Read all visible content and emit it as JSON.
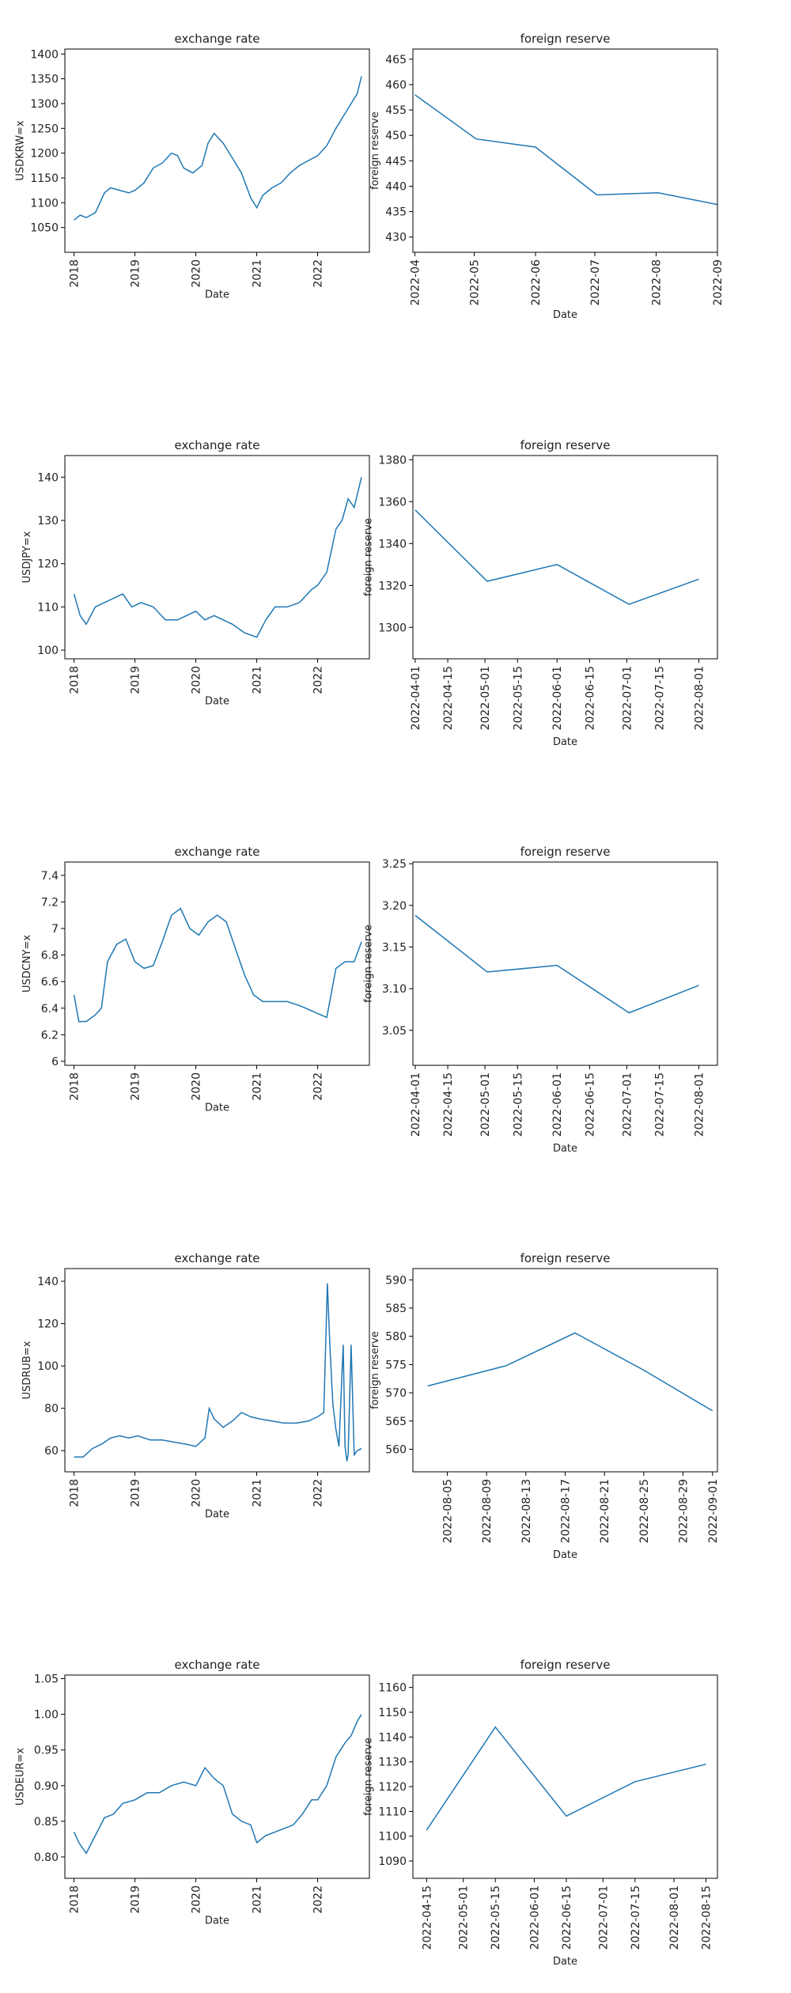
{
  "chart_data": [
    {
      "type": "line",
      "title": "exchange rate",
      "xlabel": "Date",
      "ylabel": "USDKRW=x",
      "xlim": [
        2017.85,
        2022.85
      ],
      "ylim": [
        1000,
        1410
      ],
      "xticks": [
        2018,
        2019,
        2020,
        2021,
        2022
      ],
      "xtick_labels": [
        "2018",
        "2019",
        "2020",
        "2021",
        "2022"
      ],
      "yticks": [
        1050,
        1100,
        1150,
        1200,
        1250,
        1300,
        1350,
        1400
      ],
      "x": [
        2018.0,
        2018.1,
        2018.2,
        2018.35,
        2018.5,
        2018.6,
        2018.75,
        2018.9,
        2019.0,
        2019.15,
        2019.3,
        2019.45,
        2019.6,
        2019.7,
        2019.8,
        2019.95,
        2020.1,
        2020.2,
        2020.3,
        2020.45,
        2020.6,
        2020.75,
        2020.9,
        2021.0,
        2021.1,
        2021.25,
        2021.4,
        2021.55,
        2021.7,
        2021.85,
        2022.0,
        2022.15,
        2022.3,
        2022.45,
        2022.55,
        2022.65,
        2022.72
      ],
      "values": [
        1065,
        1075,
        1070,
        1080,
        1120,
        1130,
        1125,
        1120,
        1125,
        1140,
        1170,
        1180,
        1200,
        1195,
        1170,
        1160,
        1175,
        1220,
        1240,
        1220,
        1190,
        1160,
        1110,
        1090,
        1115,
        1130,
        1140,
        1160,
        1175,
        1185,
        1195,
        1215,
        1250,
        1280,
        1300,
        1320,
        1355
      ]
    },
    {
      "type": "line",
      "title": "foreign reserve",
      "xlabel": "Date",
      "ylabel": "foreign reserve",
      "xlim": [
        -1,
        153
      ],
      "ylim": [
        427,
        467
      ],
      "xticks": [
        0,
        30,
        61,
        91,
        122,
        153
      ],
      "xtick_labels": [
        "2022-04",
        "2022-05",
        "2022-06",
        "2022-07",
        "2022-08",
        "2022-09"
      ],
      "yticks": [
        430,
        435,
        440,
        445,
        450,
        455,
        460,
        465
      ],
      "x": [
        0,
        31,
        61,
        92,
        123,
        153
      ],
      "values": [
        458,
        449.3,
        447.7,
        438.3,
        438.7,
        436.4
      ]
    },
    {
      "type": "line",
      "title": "exchange rate",
      "xlabel": "Date",
      "ylabel": "USDJPY=x",
      "xlim": [
        2017.85,
        2022.85
      ],
      "ylim": [
        98,
        145
      ],
      "xticks": [
        2018,
        2019,
        2020,
        2021,
        2022
      ],
      "xtick_labels": [
        "2018",
        "2019",
        "2020",
        "2021",
        "2022"
      ],
      "yticks": [
        100,
        110,
        120,
        130,
        140
      ],
      "x": [
        2018.0,
        2018.1,
        2018.2,
        2018.35,
        2018.5,
        2018.65,
        2018.8,
        2018.95,
        2019.1,
        2019.3,
        2019.5,
        2019.7,
        2019.85,
        2020.0,
        2020.15,
        2020.3,
        2020.45,
        2020.6,
        2020.8,
        2021.0,
        2021.15,
        2021.3,
        2021.5,
        2021.7,
        2021.9,
        2022.0,
        2022.15,
        2022.3,
        2022.4,
        2022.5,
        2022.6,
        2022.72
      ],
      "values": [
        113,
        108,
        106,
        110,
        111,
        112,
        113,
        110,
        111,
        110,
        107,
        107,
        108,
        109,
        107,
        108,
        107,
        106,
        104,
        103,
        107,
        110,
        110,
        111,
        114,
        115,
        118,
        128,
        130,
        135,
        133,
        140
      ]
    },
    {
      "type": "line",
      "title": "foreign reserve",
      "xlabel": "Date",
      "ylabel": "foreign reserve",
      "xlim": [
        -1,
        130
      ],
      "ylim": [
        1285,
        1382
      ],
      "xticks": [
        0,
        14,
        30,
        44,
        61,
        75,
        91,
        105,
        122
      ],
      "xtick_labels": [
        "2022-04-01",
        "2022-04-15",
        "2022-05-01",
        "2022-05-15",
        "2022-06-01",
        "2022-06-15",
        "2022-07-01",
        "2022-07-15",
        "2022-08-01"
      ],
      "yticks": [
        1300,
        1320,
        1340,
        1360,
        1380
      ],
      "x": [
        0,
        31,
        61,
        92,
        122
      ],
      "values": [
        1356,
        1322,
        1330,
        1311,
        1323
      ]
    },
    {
      "type": "line",
      "title": "exchange rate",
      "xlabel": "Date",
      "ylabel": "USDCNY=x",
      "xlim": [
        2017.85,
        2022.85
      ],
      "ylim": [
        5.97,
        7.5
      ],
      "xticks": [
        2018,
        2019,
        2020,
        2021,
        2022
      ],
      "xtick_labels": [
        "2018",
        "2019",
        "2020",
        "2021",
        "2022"
      ],
      "yticks": [
        6.0,
        6.2,
        6.4,
        6.6,
        6.8,
        7.0,
        7.2,
        7.4
      ],
      "x": [
        2018.0,
        2018.08,
        2018.2,
        2018.35,
        2018.45,
        2018.55,
        2018.7,
        2018.85,
        2019.0,
        2019.15,
        2019.3,
        2019.45,
        2019.6,
        2019.75,
        2019.9,
        2020.05,
        2020.2,
        2020.35,
        2020.5,
        2020.65,
        2020.8,
        2020.95,
        2021.1,
        2021.3,
        2021.5,
        2021.7,
        2021.9,
        2022.05,
        2022.15,
        2022.3,
        2022.45,
        2022.6,
        2022.72
      ],
      "values": [
        6.5,
        6.3,
        6.3,
        6.35,
        6.4,
        6.75,
        6.88,
        6.92,
        6.75,
        6.7,
        6.72,
        6.9,
        7.1,
        7.15,
        7.0,
        6.95,
        7.05,
        7.1,
        7.05,
        6.85,
        6.65,
        6.5,
        6.45,
        6.45,
        6.45,
        6.42,
        6.38,
        6.35,
        6.33,
        6.7,
        6.75,
        6.75,
        6.9
      ]
    },
    {
      "type": "line",
      "title": "foreign reserve",
      "xlabel": "Date",
      "ylabel": "foreign reserve",
      "xlim": [
        -1,
        130
      ],
      "ylim": [
        3.008,
        3.252
      ],
      "xticks": [
        0,
        14,
        30,
        44,
        61,
        75,
        91,
        105,
        122
      ],
      "xtick_labels": [
        "2022-04-01",
        "2022-04-15",
        "2022-05-01",
        "2022-05-15",
        "2022-06-01",
        "2022-06-15",
        "2022-07-01",
        "2022-07-15",
        "2022-08-01"
      ],
      "yticks": [
        3.05,
        3.1,
        3.15,
        3.2,
        3.25
      ],
      "ytick_labels": [
        "3.05",
        "3.10",
        "3.15",
        "3.20",
        "3.25"
      ],
      "x": [
        0,
        31,
        61,
        92,
        122
      ],
      "values": [
        3.188,
        3.12,
        3.128,
        3.071,
        3.104
      ]
    },
    {
      "type": "line",
      "title": "exchange rate",
      "xlabel": "Date",
      "ylabel": "USDRUB=x",
      "xlim": [
        2017.85,
        2022.85
      ],
      "ylim": [
        50,
        146
      ],
      "xticks": [
        2018,
        2019,
        2020,
        2021,
        2022
      ],
      "xtick_labels": [
        "2018",
        "2019",
        "2020",
        "2021",
        "2022"
      ],
      "yticks": [
        60,
        80,
        100,
        120,
        140
      ],
      "x": [
        2018.0,
        2018.15,
        2018.3,
        2018.45,
        2018.6,
        2018.75,
        2018.9,
        2019.05,
        2019.25,
        2019.45,
        2019.65,
        2019.85,
        2020.0,
        2020.15,
        2020.22,
        2020.3,
        2020.45,
        2020.6,
        2020.75,
        2020.9,
        2021.05,
        2021.25,
        2021.45,
        2021.65,
        2021.85,
        2022.0,
        2022.1,
        2022.16,
        2022.2,
        2022.25,
        2022.3,
        2022.35,
        2022.42,
        2022.45,
        2022.48,
        2022.5,
        2022.55,
        2022.6,
        2022.65,
        2022.72
      ],
      "values": [
        57,
        57,
        61,
        63,
        66,
        67,
        66,
        67,
        65,
        65,
        64,
        63,
        62,
        66,
        80,
        75,
        71,
        74,
        78,
        76,
        75,
        74,
        73,
        73,
        74,
        76,
        78,
        139,
        110,
        82,
        70,
        62,
        110,
        62,
        55,
        58,
        110,
        58,
        60,
        61
      ]
    },
    {
      "type": "line",
      "title": "foreign reserve",
      "xlabel": "Date",
      "ylabel": "foreign reserve",
      "xlim": [
        -1.5,
        29.5
      ],
      "ylim": [
        556,
        592
      ],
      "xticks": [
        2,
        6,
        10,
        14,
        18,
        22,
        26,
        29
      ],
      "xtick_labels": [
        "2022-08-05",
        "2022-08-09",
        "2022-08-13",
        "2022-08-17",
        "2022-08-21",
        "2022-08-25",
        "2022-08-29",
        "2022-09-01"
      ],
      "yticks": [
        560,
        565,
        570,
        575,
        580,
        585,
        590
      ],
      "x": [
        0,
        8,
        15,
        22,
        29
      ],
      "values": [
        571.2,
        574.8,
        580.6,
        574,
        566.8
      ]
    },
    {
      "type": "line",
      "title": "exchange rate",
      "xlabel": "Date",
      "ylabel": "USDEUR=x",
      "xlim": [
        2017.85,
        2022.85
      ],
      "ylim": [
        0.77,
        1.055
      ],
      "xticks": [
        2018,
        2019,
        2020,
        2021,
        2022
      ],
      "xtick_labels": [
        "2018",
        "2019",
        "2020",
        "2021",
        "2022"
      ],
      "yticks": [
        0.8,
        0.85,
        0.9,
        0.95,
        1.0,
        1.05
      ],
      "ytick_labels": [
        "0.80",
        "0.85",
        "0.90",
        "0.95",
        "1.00",
        "1.05"
      ],
      "x": [
        2018.0,
        2018.08,
        2018.2,
        2018.35,
        2018.5,
        2018.65,
        2018.8,
        2019.0,
        2019.2,
        2019.4,
        2019.6,
        2019.8,
        2020.0,
        2020.15,
        2020.3,
        2020.45,
        2020.6,
        2020.75,
        2020.9,
        2021.0,
        2021.15,
        2021.3,
        2021.45,
        2021.6,
        2021.75,
        2021.9,
        2022.0,
        2022.15,
        2022.3,
        2022.45,
        2022.55,
        2022.65,
        2022.72
      ],
      "values": [
        0.835,
        0.82,
        0.805,
        0.83,
        0.855,
        0.86,
        0.875,
        0.88,
        0.89,
        0.89,
        0.9,
        0.905,
        0.9,
        0.925,
        0.91,
        0.9,
        0.86,
        0.85,
        0.845,
        0.82,
        0.83,
        0.835,
        0.84,
        0.845,
        0.86,
        0.88,
        0.88,
        0.9,
        0.94,
        0.96,
        0.97,
        0.99,
        1.0
      ]
    },
    {
      "type": "line",
      "title": "foreign reserve",
      "xlabel": "Date",
      "ylabel": "foreign reserve",
      "xlim": [
        -6,
        127
      ],
      "ylim": [
        1083,
        1165
      ],
      "xticks": [
        0,
        16,
        30,
        47,
        61,
        77,
        91,
        108,
        122
      ],
      "xtick_labels": [
        "2022-04-15",
        "2022-05-01",
        "2022-05-15",
        "2022-06-01",
        "2022-06-15",
        "2022-07-01",
        "2022-07-15",
        "2022-08-01",
        "2022-08-15"
      ],
      "yticks": [
        1090,
        1100,
        1110,
        1120,
        1130,
        1140,
        1150,
        1160
      ],
      "x": [
        0,
        30,
        61,
        91,
        122
      ],
      "values": [
        1102.5,
        1144,
        1108.1,
        1122,
        1129
      ]
    }
  ]
}
